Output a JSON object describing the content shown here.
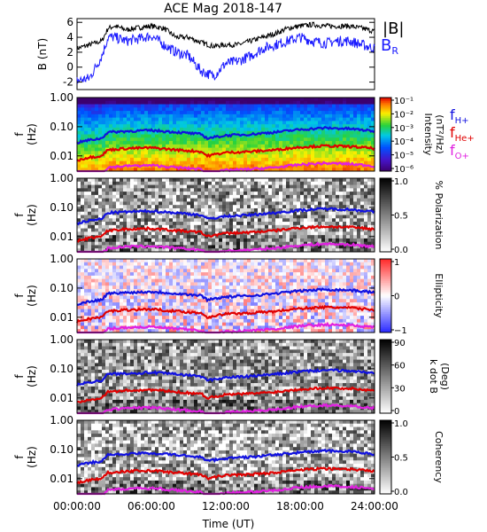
{
  "title": "ACE Mag 2018-147",
  "xlabel": "Time (UT)",
  "x_ticks": [
    "00:00:00",
    "06:00:00",
    "12:00:00",
    "18:00:00",
    "24:00:00"
  ],
  "colors": {
    "B_total": "#000000",
    "B_R": "#1a1aff",
    "f_H": "#1010e0",
    "f_He": "#e00000",
    "f_O": "#e020e0"
  },
  "panel1": {
    "ylabel_main": "B",
    "ylabel_unit": "(nT)",
    "y_ticks": [
      "6",
      "4",
      "2",
      "0",
      "-2"
    ],
    "legend_total": "|B|",
    "legend_r_main": "B",
    "legend_r_sub": "R"
  },
  "spec_ylabel_main": "f",
  "spec_ylabel_unit": "(Hz)",
  "spec_y_ticks": [
    "1.00",
    "0.10",
    "0.01"
  ],
  "gyro_legend": [
    {
      "main": "f",
      "sub": "H+"
    },
    {
      "main": "f",
      "sub": "He+"
    },
    {
      "main": "f",
      "sub": "O+"
    }
  ],
  "panels": [
    {
      "key": "intensity",
      "cbar_label": "Intensity",
      "cbar_label2": "(nT²/Hz)",
      "cbar_ticks": [
        "10⁻¹",
        "10⁻²",
        "10⁻³",
        "10⁻⁴",
        "10⁻⁵",
        "10⁻⁶"
      ],
      "colormap": "rainbow"
    },
    {
      "key": "polarization",
      "cbar_label": "% Polarization",
      "cbar_label2": "",
      "cbar_ticks": [
        "1.0",
        "0.5",
        "0.0"
      ],
      "colormap": "gray"
    },
    {
      "key": "ellipticity",
      "cbar_label": "Ellipticity",
      "cbar_label2": "",
      "cbar_ticks": [
        "1",
        "0",
        "−1"
      ],
      "colormap": "bwr"
    },
    {
      "key": "kdotb",
      "cbar_label": "k dot B",
      "cbar_label2": "(Deg)",
      "cbar_ticks": [
        "90",
        "60",
        "30",
        "0"
      ],
      "colormap": "gray"
    },
    {
      "key": "coherency",
      "cbar_label": "Coherency",
      "cbar_label2": "",
      "cbar_ticks": [
        "1.0",
        "0.5",
        "0.0"
      ],
      "colormap": "gray"
    }
  ],
  "chart_data": {
    "type": "line",
    "title": "ACE Mag 2018-147",
    "xlabel": "Time (UT)",
    "xlim_hours": [
      0,
      24
    ],
    "ylim": [
      -3,
      6.5
    ],
    "ylabel": "B (nT)",
    "series": [
      {
        "name": "|B|",
        "x_hours": [
          0,
          1,
          2,
          2.5,
          3,
          4,
          5,
          6,
          7,
          8,
          9,
          10,
          11,
          12,
          13,
          14,
          15,
          16,
          17,
          18,
          19,
          20,
          21,
          22,
          23,
          24
        ],
        "values": [
          2.5,
          3.0,
          3.5,
          5.2,
          5.5,
          5.0,
          5.3,
          5.5,
          5.2,
          4.0,
          4.0,
          3.3,
          2.8,
          3.0,
          3.0,
          3.5,
          4.0,
          4.5,
          5.2,
          5.5,
          5.7,
          5.5,
          5.5,
          5.5,
          5.2,
          4.8
        ]
      },
      {
        "name": "B_R",
        "x_hours": [
          0,
          1,
          2,
          2.5,
          3,
          4,
          5,
          6,
          7,
          8,
          9,
          10,
          11,
          12,
          13,
          14,
          15,
          16,
          17,
          18,
          19,
          20,
          21,
          22,
          23,
          24
        ],
        "values": [
          -1.8,
          -1.5,
          1.5,
          4.0,
          4.0,
          3.5,
          3.8,
          4.2,
          3.0,
          2.0,
          1.5,
          -0.5,
          -1.2,
          0.5,
          0.8,
          1.5,
          2.5,
          3.0,
          3.5,
          4.0,
          3.5,
          3.2,
          3.5,
          3.5,
          3.0,
          2.5
        ]
      }
    ],
    "spectrogram": {
      "ylim_hz": [
        0.003,
        1.0
      ],
      "y_scale": "log",
      "gyro_freq_hz": {
        "x_hours": [
          0,
          1,
          2,
          2.5,
          4,
          6,
          8,
          10,
          10.5,
          12,
          14,
          16,
          18,
          20,
          22,
          24
        ],
        "f_H": [
          0.028,
          0.035,
          0.04,
          0.065,
          0.07,
          0.075,
          0.065,
          0.055,
          0.04,
          0.05,
          0.055,
          0.065,
          0.08,
          0.09,
          0.085,
          0.07
        ],
        "f_He": [
          0.007,
          0.009,
          0.01,
          0.016,
          0.018,
          0.019,
          0.016,
          0.014,
          0.01,
          0.013,
          0.014,
          0.016,
          0.02,
          0.022,
          0.021,
          0.018
        ],
        "f_O": [
          0.0018,
          0.0022,
          0.0025,
          0.004,
          0.0045,
          0.0047,
          0.004,
          0.0035,
          0.0025,
          0.0032,
          0.0035,
          0.004,
          0.005,
          0.0056,
          0.0053,
          0.0045
        ]
      }
    }
  }
}
